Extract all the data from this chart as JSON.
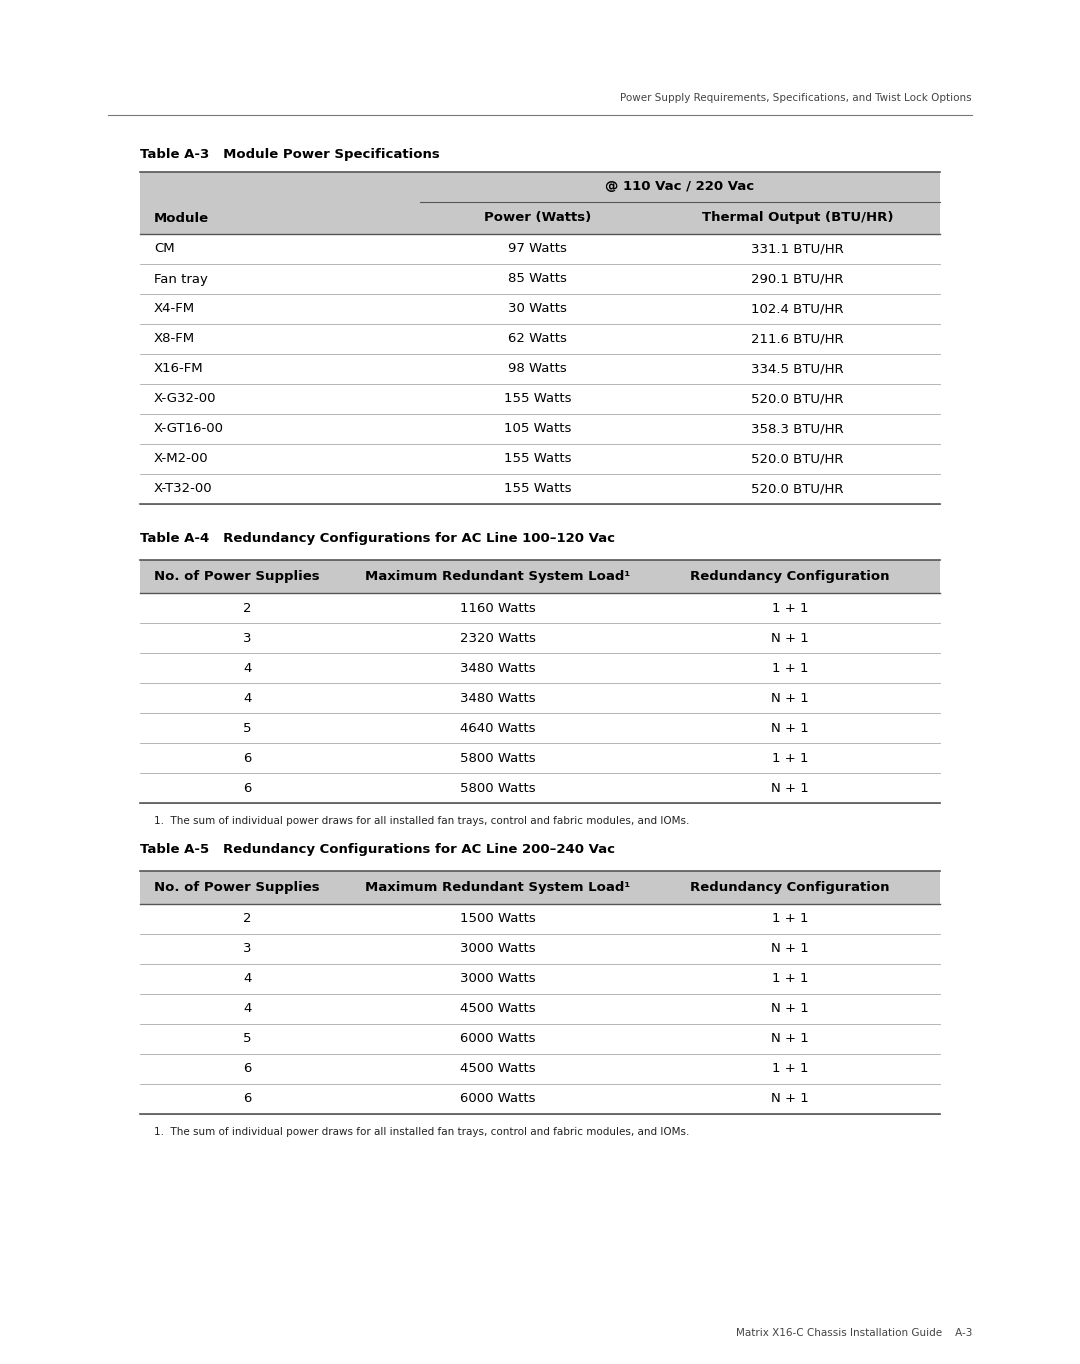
{
  "header_text": "Power Supply Requirements, Specifications, and Twist Lock Options",
  "footer_text": "Matrix X16-C Chassis Installation Guide    A-3",
  "page_bg": "#ffffff",
  "table_a3_title": "Table A-3   Module Power Specifications",
  "table_a3_span_header": "@ 110 Vac / 220 Vac",
  "table_a3_headers": [
    "Module",
    "Power (Watts)",
    "Thermal Output (BTU/HR)"
  ],
  "table_a3_rows": [
    [
      "CM",
      "97 Watts",
      "331.1 BTU/HR"
    ],
    [
      "Fan tray",
      "85 Watts",
      "290.1 BTU/HR"
    ],
    [
      "X4-FM",
      "30 Watts",
      "102.4 BTU/HR"
    ],
    [
      "X8-FM",
      "62 Watts",
      "211.6 BTU/HR"
    ],
    [
      "X16-FM",
      "98 Watts",
      "334.5 BTU/HR"
    ],
    [
      "X-G32-00",
      "155 Watts",
      "520.0 BTU/HR"
    ],
    [
      "X-GT16-00",
      "105 Watts",
      "358.3 BTU/HR"
    ],
    [
      "X-M2-00",
      "155 Watts",
      "520.0 BTU/HR"
    ],
    [
      "X-T32-00",
      "155 Watts",
      "520.0 BTU/HR"
    ]
  ],
  "table_a4_title": "Table A-4   Redundancy Configurations for AC Line 100–120 Vac",
  "table_a4_headers": [
    "No. of Power Supplies",
    "Maximum Redundant System Load¹",
    "Redundancy Configuration"
  ],
  "table_a4_rows": [
    [
      "2",
      "1160 Watts",
      "1 + 1"
    ],
    [
      "3",
      "2320 Watts",
      "N + 1"
    ],
    [
      "4",
      "3480 Watts",
      "1 + 1"
    ],
    [
      "4",
      "3480 Watts",
      "N + 1"
    ],
    [
      "5",
      "4640 Watts",
      "N + 1"
    ],
    [
      "6",
      "5800 Watts",
      "1 + 1"
    ],
    [
      "6",
      "5800 Watts",
      "N + 1"
    ]
  ],
  "table_a4_footnote": "1.  The sum of individual power draws for all installed fan trays, control and fabric modules, and IOMs.",
  "table_a5_title": "Table A-5   Redundancy Configurations for AC Line 200–240 Vac",
  "table_a5_headers": [
    "No. of Power Supplies",
    "Maximum Redundant System Load¹",
    "Redundancy Configuration"
  ],
  "table_a5_rows": [
    [
      "2",
      "1500 Watts",
      "1 + 1"
    ],
    [
      "3",
      "3000 Watts",
      "N + 1"
    ],
    [
      "4",
      "3000 Watts",
      "1 + 1"
    ],
    [
      "4",
      "4500 Watts",
      "N + 1"
    ],
    [
      "5",
      "6000 Watts",
      "N + 1"
    ],
    [
      "6",
      "4500 Watts",
      "1 + 1"
    ],
    [
      "6",
      "6000 Watts",
      "N + 1"
    ]
  ],
  "table_a5_footnote": "1.  The sum of individual power draws for all installed fan trays, control and fabric modules, and IOMs.",
  "header_bg": "#c8c8c8",
  "line_color_heavy": "#555555",
  "line_color_light": "#aaaaaa",
  "text_color": "#000000",
  "subtext_color": "#333333"
}
